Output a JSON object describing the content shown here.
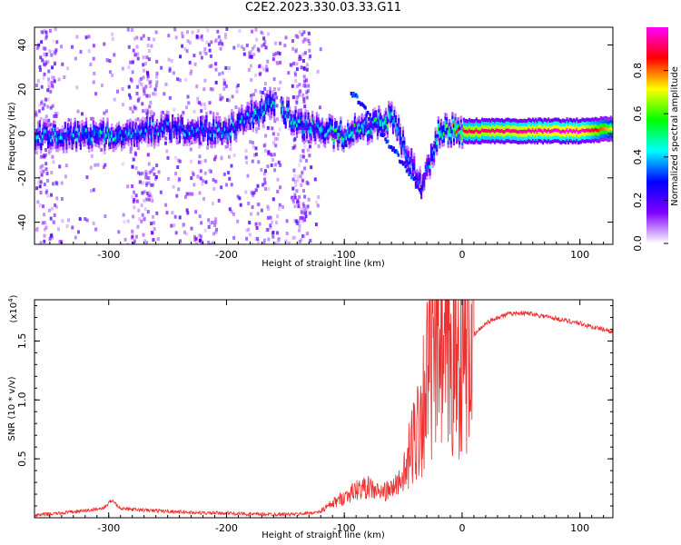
{
  "title": "C2E2.2023.330.03.33.G11",
  "chart_data": [
    {
      "type": "heatmap",
      "xlabel": "Height of straight line (km)",
      "ylabel": "Frequency (Hz)",
      "xlim": [
        -363,
        128
      ],
      "ylim": [
        -50,
        48
      ],
      "x_ticks": [
        "-300",
        "-200",
        "-100",
        "0",
        "100"
      ],
      "x_tick_values": [
        -300,
        -200,
        -100,
        0,
        100
      ],
      "y_ticks": [
        "-40",
        "-20",
        "0",
        "20",
        "40"
      ],
      "y_tick_values": [
        -40,
        -20,
        0,
        20,
        40
      ],
      "colorbar": {
        "label": "Normalized spectral amplitude",
        "range": [
          0,
          1
        ],
        "ticks": [
          "0.0",
          "0.2",
          "0.4",
          "0.6",
          "0.8"
        ],
        "tick_values": [
          0.0,
          0.2,
          0.4,
          0.6,
          0.8
        ],
        "colormap": [
          "#ffffff",
          "#7f00ff",
          "#0000ff",
          "#00ffff",
          "#00ff00",
          "#ffff00",
          "#ff0000",
          "#ff00ff"
        ]
      },
      "ridge": [
        {
          "x": -350,
          "freq": 0,
          "amp": 0.45
        },
        {
          "x": -300,
          "freq": 0,
          "amp": 0.5
        },
        {
          "x": -250,
          "freq": 3,
          "amp": 0.4
        },
        {
          "x": -200,
          "freq": 2,
          "amp": 0.45
        },
        {
          "x": -165,
          "freq": 14,
          "amp": 0.5
        },
        {
          "x": -130,
          "freq": 3,
          "amp": 0.5
        },
        {
          "x": -100,
          "freq": 0,
          "amp": 0.55
        },
        {
          "x": -60,
          "freq": 8,
          "amp": 0.55
        },
        {
          "x": -35,
          "freq": -24,
          "amp": 0.3
        },
        {
          "x": -20,
          "freq": 2,
          "amp": 0.6
        },
        {
          "x": 0,
          "freq": 2,
          "amp": 0.9
        },
        {
          "x": 50,
          "freq": 2,
          "amp": 0.95
        },
        {
          "x": 100,
          "freq": 2,
          "amp": 1.0
        },
        {
          "x": 128,
          "freq": 3,
          "amp": 0.7
        }
      ],
      "grid": false
    },
    {
      "type": "line",
      "xlabel": "Height of straight line (km)",
      "ylabel": "SNR (10 * v/v)",
      "y_multiplier": "(x10",
      "y_multiplier_exp": "4",
      "y_multiplier_close": ")",
      "xlim": [
        -363,
        128
      ],
      "ylim": [
        0,
        1.85
      ],
      "x_ticks": [
        "-300",
        "-200",
        "-100",
        "0",
        "100"
      ],
      "x_tick_values": [
        -300,
        -200,
        -100,
        0,
        100
      ],
      "y_ticks": [
        "0.5",
        "1.0",
        "1.5"
      ],
      "y_tick_values": [
        0.5,
        1.0,
        1.5
      ],
      "series": [
        {
          "color": "#ee3030",
          "x": [
            -363,
            -340,
            -320,
            -305,
            -297,
            -290,
            -280,
            -260,
            -240,
            -220,
            -200,
            -180,
            -160,
            -140,
            -120,
            -110,
            -100,
            -90,
            -80,
            -70,
            -60,
            -50,
            -45,
            -40,
            -35,
            -30,
            -25,
            -20,
            -15,
            -10,
            -5,
            0,
            5,
            10,
            20,
            30,
            40,
            50,
            60,
            70,
            80,
            90,
            100,
            110,
            120,
            128
          ],
          "y": [
            0.02,
            0.04,
            0.06,
            0.08,
            0.15,
            0.08,
            0.07,
            0.06,
            0.05,
            0.04,
            0.04,
            0.03,
            0.03,
            0.03,
            0.05,
            0.1,
            0.15,
            0.2,
            0.22,
            0.18,
            0.2,
            0.3,
            0.5,
            0.7,
            0.9,
            1.2,
            1.3,
            1.5,
            1.25,
            1.3,
            1.35,
            1.4,
            1.45,
            1.55,
            1.65,
            1.7,
            1.73,
            1.74,
            1.73,
            1.71,
            1.69,
            1.67,
            1.65,
            1.62,
            1.6,
            1.58
          ]
        }
      ],
      "grid": false
    }
  ]
}
